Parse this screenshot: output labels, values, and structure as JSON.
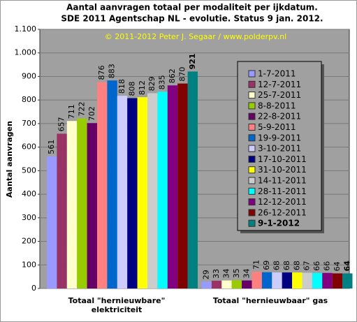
{
  "chart_data": {
    "type": "bar",
    "title": "Aantal aanvragen totaal per modaliteit per ijkdatum.",
    "subtitle": "SDE 2011 Agentschap NL - evolutie. Status 9 jan. 2012.",
    "annotation": "© 2011-2012 Peter J. Segaar / www.polderpv.nl",
    "ylabel": "Aantal aanvragen",
    "categories": [
      "Totaal \"hernieuwbare\" elektriciteit",
      "Totaal \"hernieuwbaar\" gas"
    ],
    "series": [
      {
        "name": "1-7-2011",
        "color": "#9999ff",
        "values": [
          561,
          29
        ]
      },
      {
        "name": "12-7-2011",
        "color": "#993366",
        "values": [
          657,
          33
        ]
      },
      {
        "name": "25-7-2011",
        "color": "#ffffcc",
        "values": [
          711,
          34
        ]
      },
      {
        "name": "8-8-2011",
        "color": "#99cc00",
        "values": [
          722,
          35
        ]
      },
      {
        "name": "22-8-2011",
        "color": "#660066",
        "values": [
          702,
          34
        ]
      },
      {
        "name": "5-9-2011",
        "color": "#ff8080",
        "values": [
          876,
          71
        ]
      },
      {
        "name": "19-9-2011",
        "color": "#0066cc",
        "values": [
          883,
          69
        ]
      },
      {
        "name": "3-10-2011",
        "color": "#ccccff",
        "values": [
          818,
          68
        ]
      },
      {
        "name": "17-10-2011",
        "color": "#000080",
        "values": [
          808,
          68
        ]
      },
      {
        "name": "31-10-2011",
        "color": "#ffff00",
        "values": [
          812,
          68
        ]
      },
      {
        "name": "14-11-2011",
        "color": "#cccccc",
        "values": [
          829,
          67
        ]
      },
      {
        "name": "28-11-2011",
        "color": "#00ffff",
        "values": [
          835,
          66
        ]
      },
      {
        "name": "12-12-2011",
        "color": "#800080",
        "values": [
          862,
          66
        ]
      },
      {
        "name": "26-12-2011",
        "color": "#800000",
        "values": [
          870,
          64
        ]
      },
      {
        "name": "9-1-2012",
        "color": "#008080",
        "values": [
          921,
          64
        ]
      }
    ],
    "ylim": [
      0,
      1100
    ],
    "yticks": [
      0,
      100,
      200,
      300,
      400,
      500,
      600,
      700,
      800,
      900,
      {
        "value": 1000,
        "label": "1.000"
      },
      {
        "value": 1100,
        "label": "1.100"
      }
    ],
    "grid": true
  }
}
